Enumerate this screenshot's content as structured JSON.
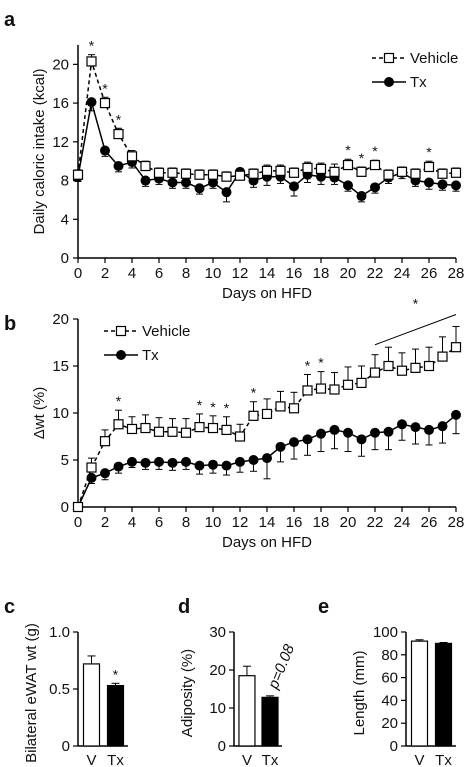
{
  "chart_data": [
    {
      "panel": "a",
      "type": "line",
      "xlabel": "Days on HFD",
      "ylabel": "Daily caloric intake (kcal)",
      "xlim": [
        0,
        28
      ],
      "ylim": [
        0,
        22
      ],
      "xticks": [
        "0",
        "2",
        "4",
        "6",
        "8",
        "10",
        "12",
        "14",
        "16",
        "18",
        "20",
        "22",
        "24",
        "26",
        "28"
      ],
      "yticks": [
        "0",
        "4",
        "8",
        "12",
        "16",
        "20"
      ],
      "legend_position": "top-right",
      "series": [
        {
          "name": "Vehicle",
          "color": "#000000",
          "marker": "open-square",
          "line": "dashed",
          "x": [
            0,
            1,
            2,
            3,
            4,
            5,
            6,
            7,
            8,
            9,
            10,
            11,
            12,
            13,
            14,
            15,
            16,
            17,
            18,
            19,
            20,
            21,
            22,
            23,
            24,
            25,
            26,
            27,
            28
          ],
          "y": [
            8.6,
            20.3,
            16.0,
            12.8,
            10.5,
            9.5,
            8.8,
            8.8,
            8.7,
            8.6,
            8.6,
            8.4,
            8.5,
            8.7,
            9.0,
            9.0,
            8.8,
            9.3,
            9.2,
            8.9,
            9.6,
            8.9,
            9.6,
            8.6,
            8.9,
            8.7,
            9.4,
            8.7,
            8.8
          ],
          "err": [
            0.5,
            0.7,
            0.6,
            0.6,
            0.6,
            0.5,
            0.5,
            0.5,
            0.5,
            0.5,
            0.5,
            0.5,
            0.5,
            0.5,
            0.6,
            0.6,
            0.5,
            0.6,
            0.6,
            0.8,
            0.6,
            0.5,
            0.5,
            0.5,
            0.5,
            0.5,
            0.6,
            0.5,
            0.5
          ]
        },
        {
          "name": "Tx",
          "color": "#000000",
          "marker": "filled-circle",
          "line": "solid",
          "x": [
            0,
            1,
            2,
            3,
            4,
            5,
            6,
            7,
            8,
            9,
            10,
            11,
            12,
            13,
            14,
            15,
            16,
            17,
            18,
            19,
            20,
            21,
            22,
            23,
            24,
            25,
            26,
            27,
            28
          ],
          "y": [
            8.4,
            16.1,
            11.1,
            9.5,
            9.9,
            8.0,
            8.2,
            7.8,
            7.8,
            7.2,
            7.8,
            6.8,
            8.9,
            8.0,
            8.4,
            8.4,
            7.4,
            8.6,
            8.4,
            8.3,
            7.5,
            6.4,
            7.3,
            8.3,
            8.8,
            8.0,
            7.8,
            7.6,
            7.5
          ],
          "err": [
            0.5,
            0.9,
            0.6,
            0.6,
            0.6,
            0.6,
            0.6,
            0.6,
            0.6,
            0.6,
            0.6,
            1.0,
            0.6,
            0.7,
            0.9,
            0.7,
            1.0,
            0.8,
            0.8,
            0.7,
            0.6,
            0.6,
            0.6,
            0.6,
            0.6,
            0.6,
            0.7,
            0.6,
            0.6
          ]
        }
      ],
      "significance_days": [
        1,
        2,
        3,
        20,
        21,
        22,
        26
      ],
      "annotation": "*"
    },
    {
      "panel": "b",
      "type": "line",
      "xlabel": "Days on HFD",
      "ylabel": "Δwt (%)",
      "xlim": [
        0,
        28
      ],
      "ylim": [
        0,
        20
      ],
      "xticks": [
        "0",
        "2",
        "4",
        "6",
        "8",
        "10",
        "12",
        "14",
        "16",
        "18",
        "20",
        "22",
        "24",
        "26",
        "28"
      ],
      "yticks": [
        "0",
        "5",
        "10",
        "15",
        "20"
      ],
      "legend_position": "top-left",
      "series": [
        {
          "name": "Vehicle",
          "color": "#000000",
          "marker": "open-square",
          "line": "dashed",
          "x": [
            0,
            1,
            2,
            3,
            4,
            5,
            6,
            7,
            8,
            9,
            10,
            11,
            12,
            13,
            14,
            15,
            16,
            17,
            18,
            19,
            20,
            21,
            22,
            23,
            24,
            25,
            26,
            27,
            28
          ],
          "y": [
            0,
            4.2,
            7.0,
            8.8,
            8.3,
            8.4,
            8.0,
            8.0,
            7.9,
            8.5,
            8.4,
            8.2,
            7.5,
            9.7,
            9.9,
            10.7,
            10.5,
            12.4,
            12.6,
            12.5,
            13.0,
            13.2,
            14.3,
            15.0,
            14.5,
            14.8,
            15.0,
            16.0,
            17.0
          ],
          "err": [
            0.3,
            1.0,
            1.2,
            1.5,
            1.3,
            1.4,
            1.5,
            1.4,
            1.5,
            1.4,
            1.3,
            1.4,
            1.3,
            1.5,
            1.6,
            1.6,
            1.7,
            1.7,
            1.8,
            1.8,
            1.9,
            1.8,
            1.9,
            2.0,
            1.9,
            2.0,
            2.0,
            2.1,
            2.2
          ]
        },
        {
          "name": "Tx",
          "color": "#000000",
          "marker": "filled-circle",
          "line": "solid",
          "x": [
            0,
            1,
            2,
            3,
            4,
            5,
            6,
            7,
            8,
            9,
            10,
            11,
            12,
            13,
            14,
            15,
            16,
            17,
            18,
            19,
            20,
            21,
            22,
            23,
            24,
            25,
            26,
            27,
            28
          ],
          "y": [
            0,
            3.1,
            3.6,
            4.3,
            4.8,
            4.7,
            4.8,
            4.7,
            4.8,
            4.4,
            4.5,
            4.4,
            4.8,
            5.0,
            5.2,
            6.4,
            6.9,
            7.2,
            7.8,
            8.2,
            7.9,
            7.2,
            7.9,
            8.0,
            8.8,
            8.5,
            8.2,
            8.6,
            9.8
          ],
          "err": [
            0.3,
            0.6,
            0.7,
            0.7,
            0.6,
            0.7,
            0.8,
            0.8,
            0.8,
            0.9,
            0.9,
            1.0,
            1.1,
            1.2,
            2.2,
            1.6,
            1.8,
            1.7,
            1.9,
            2.0,
            2.0,
            1.8,
            1.8,
            1.9,
            1.7,
            1.8,
            1.6,
            1.8,
            2.0
          ]
        }
      ],
      "significance_days": [
        3,
        9,
        10,
        11,
        13,
        17,
        18
      ],
      "significance_line": [
        22,
        28
      ],
      "annotation": "*"
    },
    {
      "panel": "c",
      "type": "bar",
      "categories": [
        "V",
        "Tx"
      ],
      "values": [
        0.72,
        0.53
      ],
      "errors": [
        0.07,
        0.02
      ],
      "fills": [
        "#ffffff",
        "#000000"
      ],
      "ylabel": "Bilateral eWAT wt (g)",
      "ylim": [
        0,
        1.0
      ],
      "yticks": [
        "0",
        "0.5",
        "1.0"
      ],
      "annotation": "*"
    },
    {
      "panel": "d",
      "type": "bar",
      "categories": [
        "V",
        "Tx"
      ],
      "values": [
        18.5,
        12.8
      ],
      "errors": [
        2.5,
        0.4
      ],
      "fills": [
        "#ffffff",
        "#000000"
      ],
      "ylabel": "Adiposity (%)",
      "ylim": [
        0,
        30
      ],
      "yticks": [
        "0",
        "10",
        "20",
        "30"
      ],
      "annotation": "p=0.08"
    },
    {
      "panel": "e",
      "type": "bar",
      "categories": [
        "V",
        "Tx"
      ],
      "values": [
        92,
        90
      ],
      "errors": [
        1.2,
        0.8
      ],
      "fills": [
        "#ffffff",
        "#000000"
      ],
      "ylabel": "Length (mm)",
      "ylim": [
        0,
        100
      ],
      "yticks": [
        "0",
        "20",
        "40",
        "60",
        "80",
        "100"
      ]
    }
  ]
}
